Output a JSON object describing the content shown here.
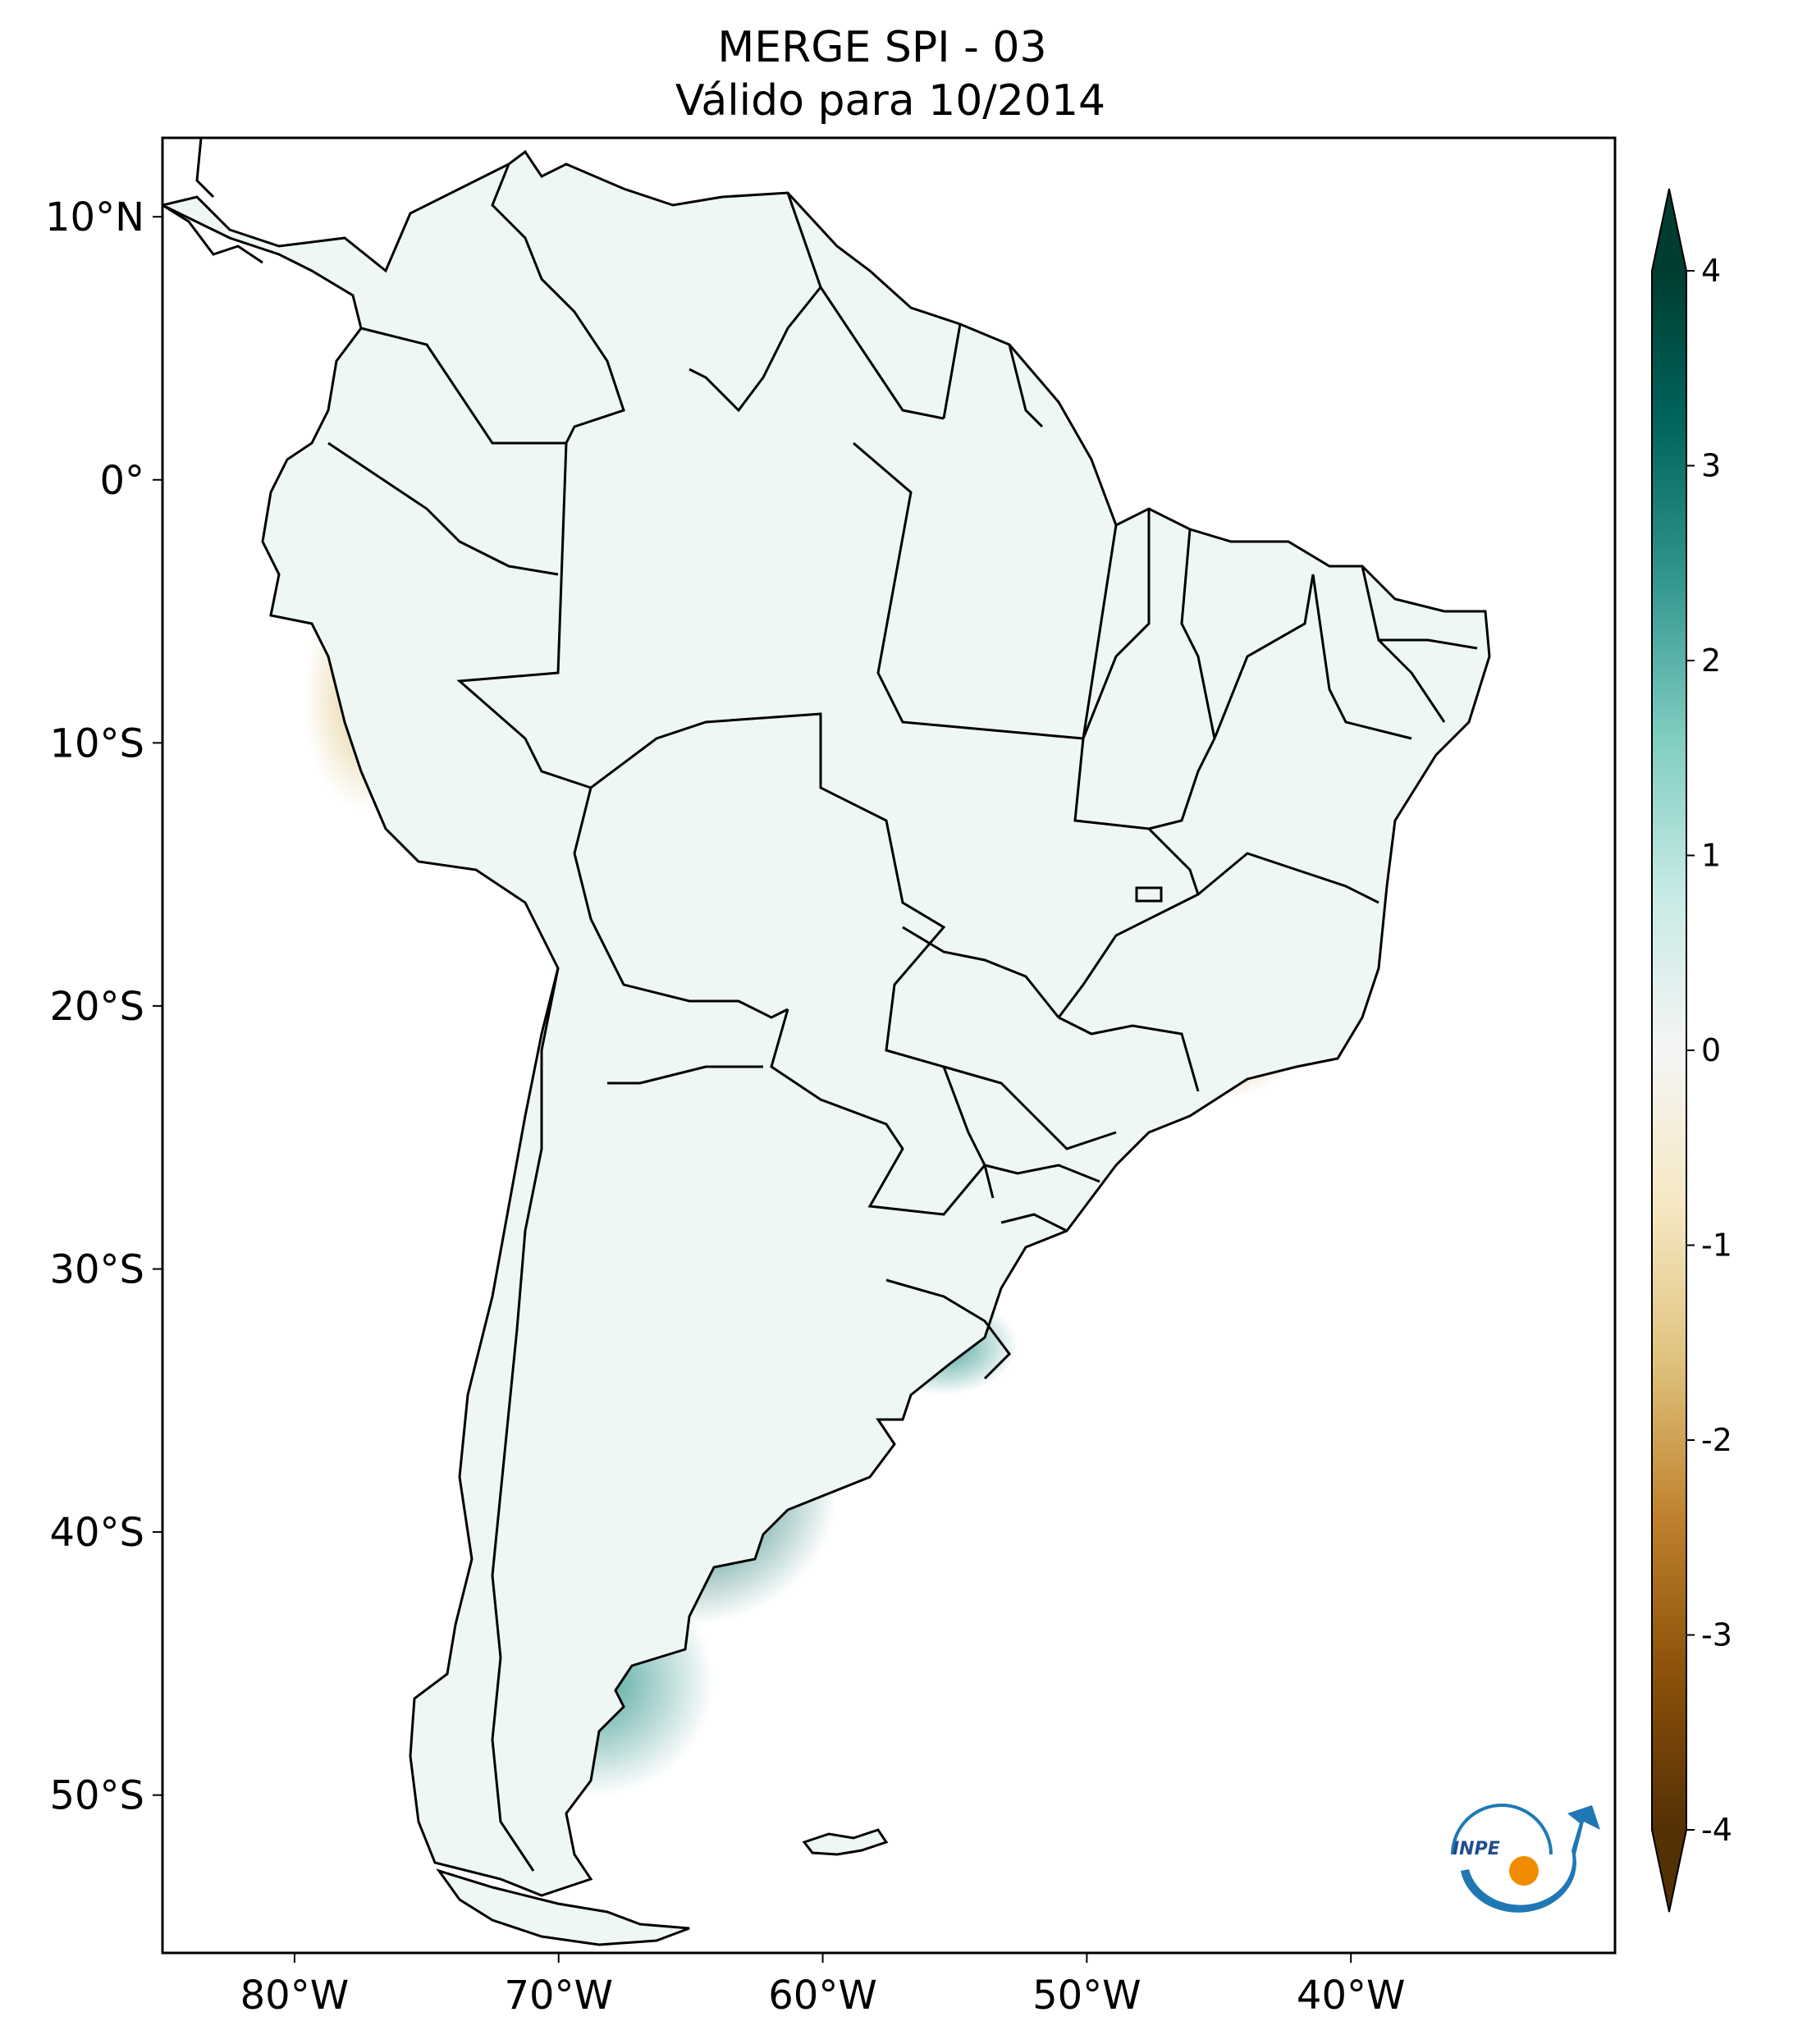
{
  "title": {
    "line1": "MERGE   SPI - 03",
    "line2": "Válido para 10/2014"
  },
  "map": {
    "lat_ticks": [
      {
        "value": 10,
        "label": "10°N"
      },
      {
        "value": 0,
        "label": "0°"
      },
      {
        "value": -10,
        "label": "10°S"
      },
      {
        "value": -20,
        "label": "20°S"
      },
      {
        "value": -30,
        "label": "30°S"
      },
      {
        "value": -40,
        "label": "40°S"
      },
      {
        "value": -50,
        "label": "50°S"
      }
    ],
    "lon_ticks": [
      {
        "value": -80,
        "label": "80°W"
      },
      {
        "value": -70,
        "label": "70°W"
      },
      {
        "value": -60,
        "label": "60°W"
      },
      {
        "value": -50,
        "label": "50°W"
      },
      {
        "value": -40,
        "label": "40°W"
      }
    ],
    "lon_range": [
      -85,
      -30
    ],
    "lat_range": [
      -56,
      13
    ]
  },
  "colorbar": {
    "ticks": [
      {
        "value": 4,
        "label": "4"
      },
      {
        "value": 3,
        "label": "3"
      },
      {
        "value": 2,
        "label": "2"
      },
      {
        "value": 1,
        "label": "1"
      },
      {
        "value": 0,
        "label": "0"
      },
      {
        "value": -1,
        "label": "-1"
      },
      {
        "value": -2,
        "label": "-2"
      },
      {
        "value": -3,
        "label": "-3"
      },
      {
        "value": -4,
        "label": "-4"
      }
    ],
    "range": [
      -4,
      4
    ],
    "extend": "both",
    "colormap": "BrBG",
    "colors": {
      "max": "#003c30",
      "wet_strong": "#01665e",
      "wet_mid": "#35978f",
      "wet_light": "#80cdc1",
      "wet_pale": "#c7eae5",
      "neutral": "#f5f5f5",
      "dry_pale": "#f6e8c3",
      "dry_light": "#dfc27d",
      "dry_mid": "#bf812d",
      "dry_strong": "#8c510a",
      "min": "#543005"
    }
  },
  "logo": {
    "text": "INPE",
    "icon": "inpe-logo-icon"
  }
}
